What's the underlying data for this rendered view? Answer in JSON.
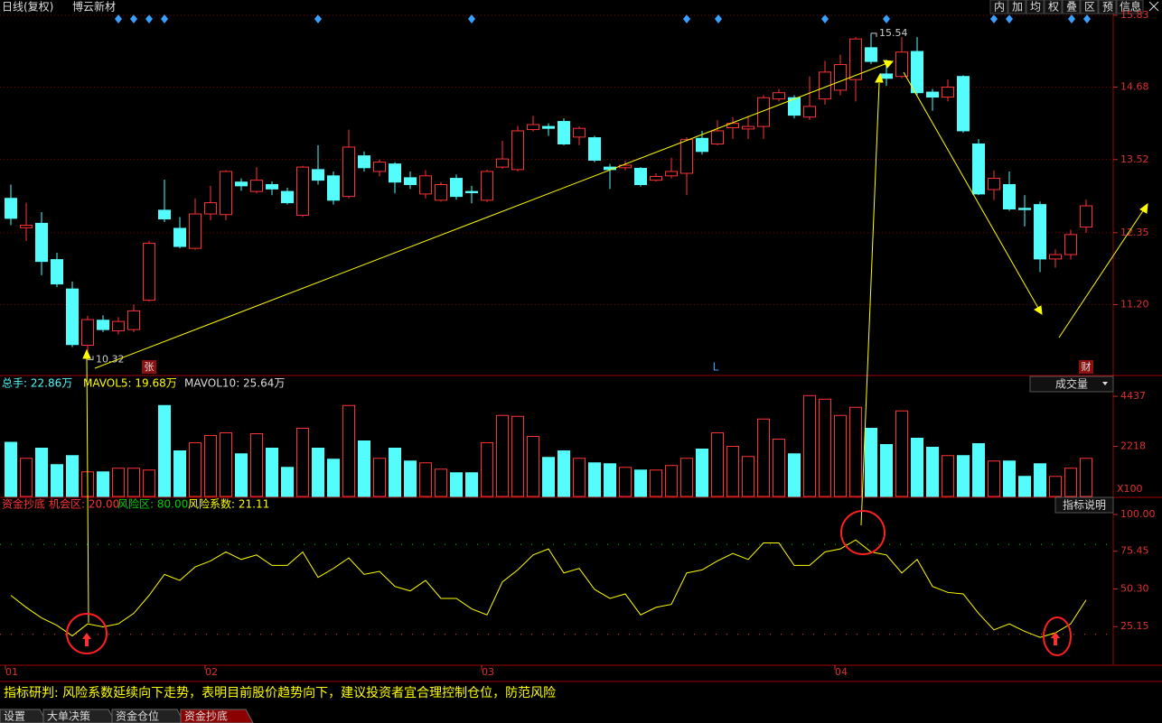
{
  "header": {
    "period": "日线(复权)",
    "stock": "博云新材",
    "buttons": [
      "内",
      "加",
      "均",
      "权",
      "叠",
      "区",
      "预",
      "信息"
    ]
  },
  "chart_data": [
    {
      "type": "candlestick",
      "open": [
        12.9,
        12.43,
        12.5,
        11.92,
        11.45,
        10.55,
        10.95,
        10.78,
        10.8,
        11.27,
        12.71,
        12.42,
        12.1,
        12.65,
        12.64,
        13.16,
        13.01,
        13.12,
        13.01,
        12.63,
        13.36,
        13.26,
        12.93,
        13.58,
        13.33,
        13.45,
        13.23,
        12.97,
        12.87,
        13.22,
        13.01,
        12.87,
        13.4,
        13.36,
        14.0,
        14.05,
        14.13,
        13.88,
        13.87,
        13.4,
        13.39,
        13.38,
        13.19,
        13.26,
        13.3,
        13.86,
        13.77,
        14.03,
        14.01,
        14.05,
        14.49,
        14.51,
        14.2,
        14.49,
        14.63,
        14.8,
        15.31,
        14.89,
        14.85,
        15.25,
        14.6,
        14.52,
        14.85,
        13.77,
        13.04,
        13.12,
        12.74,
        12.8,
        11.93,
        12.0,
        12.44
      ],
      "high": [
        13.12,
        12.83,
        12.68,
        12.03,
        11.57,
        11.02,
        11.03,
        11.0,
        11.2,
        12.22,
        13.2,
        12.6,
        12.9,
        13.1,
        13.35,
        13.22,
        13.4,
        13.17,
        13.07,
        13.42,
        13.75,
        13.33,
        14.0,
        13.65,
        13.52,
        13.48,
        13.33,
        13.35,
        13.16,
        13.28,
        13.1,
        13.36,
        13.82,
        14.06,
        14.22,
        14.1,
        14.18,
        14.05,
        13.9,
        13.45,
        13.5,
        13.4,
        13.3,
        13.55,
        13.88,
        13.98,
        14.15,
        14.2,
        14.22,
        14.55,
        14.65,
        14.55,
        14.85,
        15.1,
        15.2,
        15.48,
        15.54,
        15.12,
        15.48,
        15.48,
        14.65,
        14.8,
        14.87,
        13.85,
        13.35,
        13.33,
        12.95,
        12.85,
        12.08,
        12.4,
        12.88
      ],
      "low": [
        12.47,
        12.22,
        11.67,
        11.48,
        10.52,
        10.32,
        10.76,
        10.72,
        10.76,
        11.25,
        12.52,
        12.1,
        12.08,
        12.55,
        12.55,
        13.02,
        12.98,
        12.95,
        12.8,
        12.6,
        13.12,
        12.8,
        12.9,
        13.33,
        13.25,
        12.98,
        13.05,
        12.9,
        12.85,
        12.88,
        12.82,
        12.84,
        13.37,
        13.33,
        13.97,
        13.9,
        13.75,
        13.75,
        13.48,
        13.05,
        13.35,
        13.09,
        13.17,
        13.22,
        12.95,
        13.6,
        13.75,
        13.85,
        13.85,
        13.85,
        14.45,
        14.18,
        14.15,
        14.4,
        14.55,
        14.45,
        15.05,
        14.7,
        14.82,
        14.55,
        14.3,
        14.45,
        13.95,
        12.95,
        12.87,
        12.7,
        12.45,
        11.72,
        11.79,
        11.92,
        12.35
      ],
      "close": [
        12.58,
        12.47,
        11.89,
        11.53,
        10.56,
        10.96,
        10.8,
        10.93,
        11.1,
        12.18,
        12.57,
        12.13,
        12.65,
        12.83,
        13.33,
        13.1,
        13.19,
        13.05,
        12.83,
        13.4,
        13.19,
        12.87,
        13.72,
        13.39,
        13.48,
        13.16,
        13.12,
        13.26,
        13.12,
        12.93,
        12.99,
        13.33,
        13.53,
        13.98,
        14.08,
        14.02,
        13.77,
        14.02,
        13.51,
        13.36,
        13.43,
        13.12,
        13.25,
        13.33,
        13.84,
        13.65,
        13.98,
        14.1,
        14.05,
        14.51,
        14.59,
        14.23,
        14.37,
        14.92,
        15.04,
        15.45,
        15.09,
        14.82,
        15.24,
        14.59,
        14.52,
        14.68,
        13.98,
        12.97,
        13.22,
        12.73,
        12.72,
        11.93,
        12.0,
        12.32,
        12.78
      ],
      "up_color": "#ff3232",
      "down_color": "#54fcfc",
      "grid": true,
      "ylim": [
        10.08,
        15.9
      ],
      "yticks": [
        15.83,
        14.68,
        13.52,
        12.35,
        {
          "value": 11.2,
          "label": "11.20"
        }
      ],
      "annotations": [
        {
          "text": "10.32",
          "value": 10.32
        },
        {
          "text": "15.54",
          "value": 15.54
        }
      ],
      "markers": [
        "张",
        "L",
        "财"
      ]
    },
    {
      "type": "bar",
      "title": "总手: 22.86万",
      "ma_labels": [
        "MAVOL5: 19.68万",
        "MAVOL10: 25.64万"
      ],
      "selector": "成交量",
      "unit_label": "X100",
      "values": [
        2400,
        1690,
        2140,
        1410,
        1810,
        1090,
        1090,
        1250,
        1250,
        1170,
        4030,
        2020,
        2380,
        2700,
        2820,
        1890,
        2780,
        2140,
        1290,
        3020,
        2140,
        1650,
        4030,
        2460,
        1690,
        2140,
        1570,
        1490,
        1210,
        1050,
        1050,
        2380,
        3590,
        3550,
        2660,
        1730,
        2020,
        1690,
        1490,
        1450,
        1290,
        1170,
        1170,
        1370,
        1690,
        2100,
        2820,
        2220,
        1770,
        3430,
        2540,
        1890,
        4470,
        4310,
        3590,
        3950,
        3020,
        2300,
        3790,
        2580,
        2180,
        1810,
        1810,
        2340,
        1570,
        1570,
        890,
        1450,
        890,
        1250,
        1690
      ],
      "ylim": [
        0,
        4800
      ],
      "yticks": [
        4437,
        2218
      ]
    },
    {
      "type": "line",
      "title": "资金抄底",
      "reference_lines": [
        {
          "text": "机会区: 20.00",
          "value": 20,
          "color": "#ff3232"
        },
        {
          "text": "风险区: 80.00",
          "value": 80,
          "color": "#00d000"
        }
      ],
      "series_label": "风险系数: 21.11",
      "button": "指标说明",
      "color": "#ffff00",
      "categories": [
        "01",
        null,
        null,
        null,
        null,
        null,
        null,
        null,
        null,
        null,
        null,
        null,
        null,
        "02",
        null,
        null,
        null,
        null,
        null,
        null,
        null,
        null,
        null,
        null,
        null,
        null,
        null,
        null,
        null,
        null,
        null,
        "03",
        null,
        null,
        null,
        null,
        null,
        null,
        null,
        null,
        null,
        null,
        null,
        null,
        null,
        null,
        null,
        null,
        null,
        null,
        null,
        null,
        null,
        null,
        "04",
        null,
        null,
        null,
        null,
        null,
        null,
        null,
        null,
        null,
        null,
        null,
        null,
        null,
        null,
        null,
        null
      ],
      "values": [
        46,
        38,
        31,
        26,
        19,
        27,
        25,
        27,
        34,
        46,
        60,
        56,
        65,
        69,
        75,
        70,
        73,
        66,
        66,
        75,
        58,
        64,
        71,
        60,
        62,
        52,
        49,
        56,
        44,
        44,
        37,
        33,
        55,
        63,
        73,
        77,
        61,
        64,
        50,
        44,
        47,
        33,
        38,
        40,
        61,
        63,
        69,
        74,
        70,
        81,
        81,
        66,
        66,
        75,
        77,
        83,
        75,
        73,
        61,
        70,
        52,
        48,
        47,
        34,
        23,
        27,
        22,
        18,
        21,
        27,
        43
      ],
      "ylim": [
        0,
        103
      ],
      "yticks": [
        {
          "value": 100,
          "label": "100.00"
        },
        75.45,
        {
          "value": 50.3,
          "label": "50.30"
        },
        25.15
      ]
    }
  ],
  "commentary": "指标研判: 风险系数延续向下走势，表明目前股价趋势向下，建议投资者宜合理控制仓位，防范风险",
  "tabs": [
    "设置",
    "大单决策",
    "资金仓位",
    "资金抄底"
  ]
}
